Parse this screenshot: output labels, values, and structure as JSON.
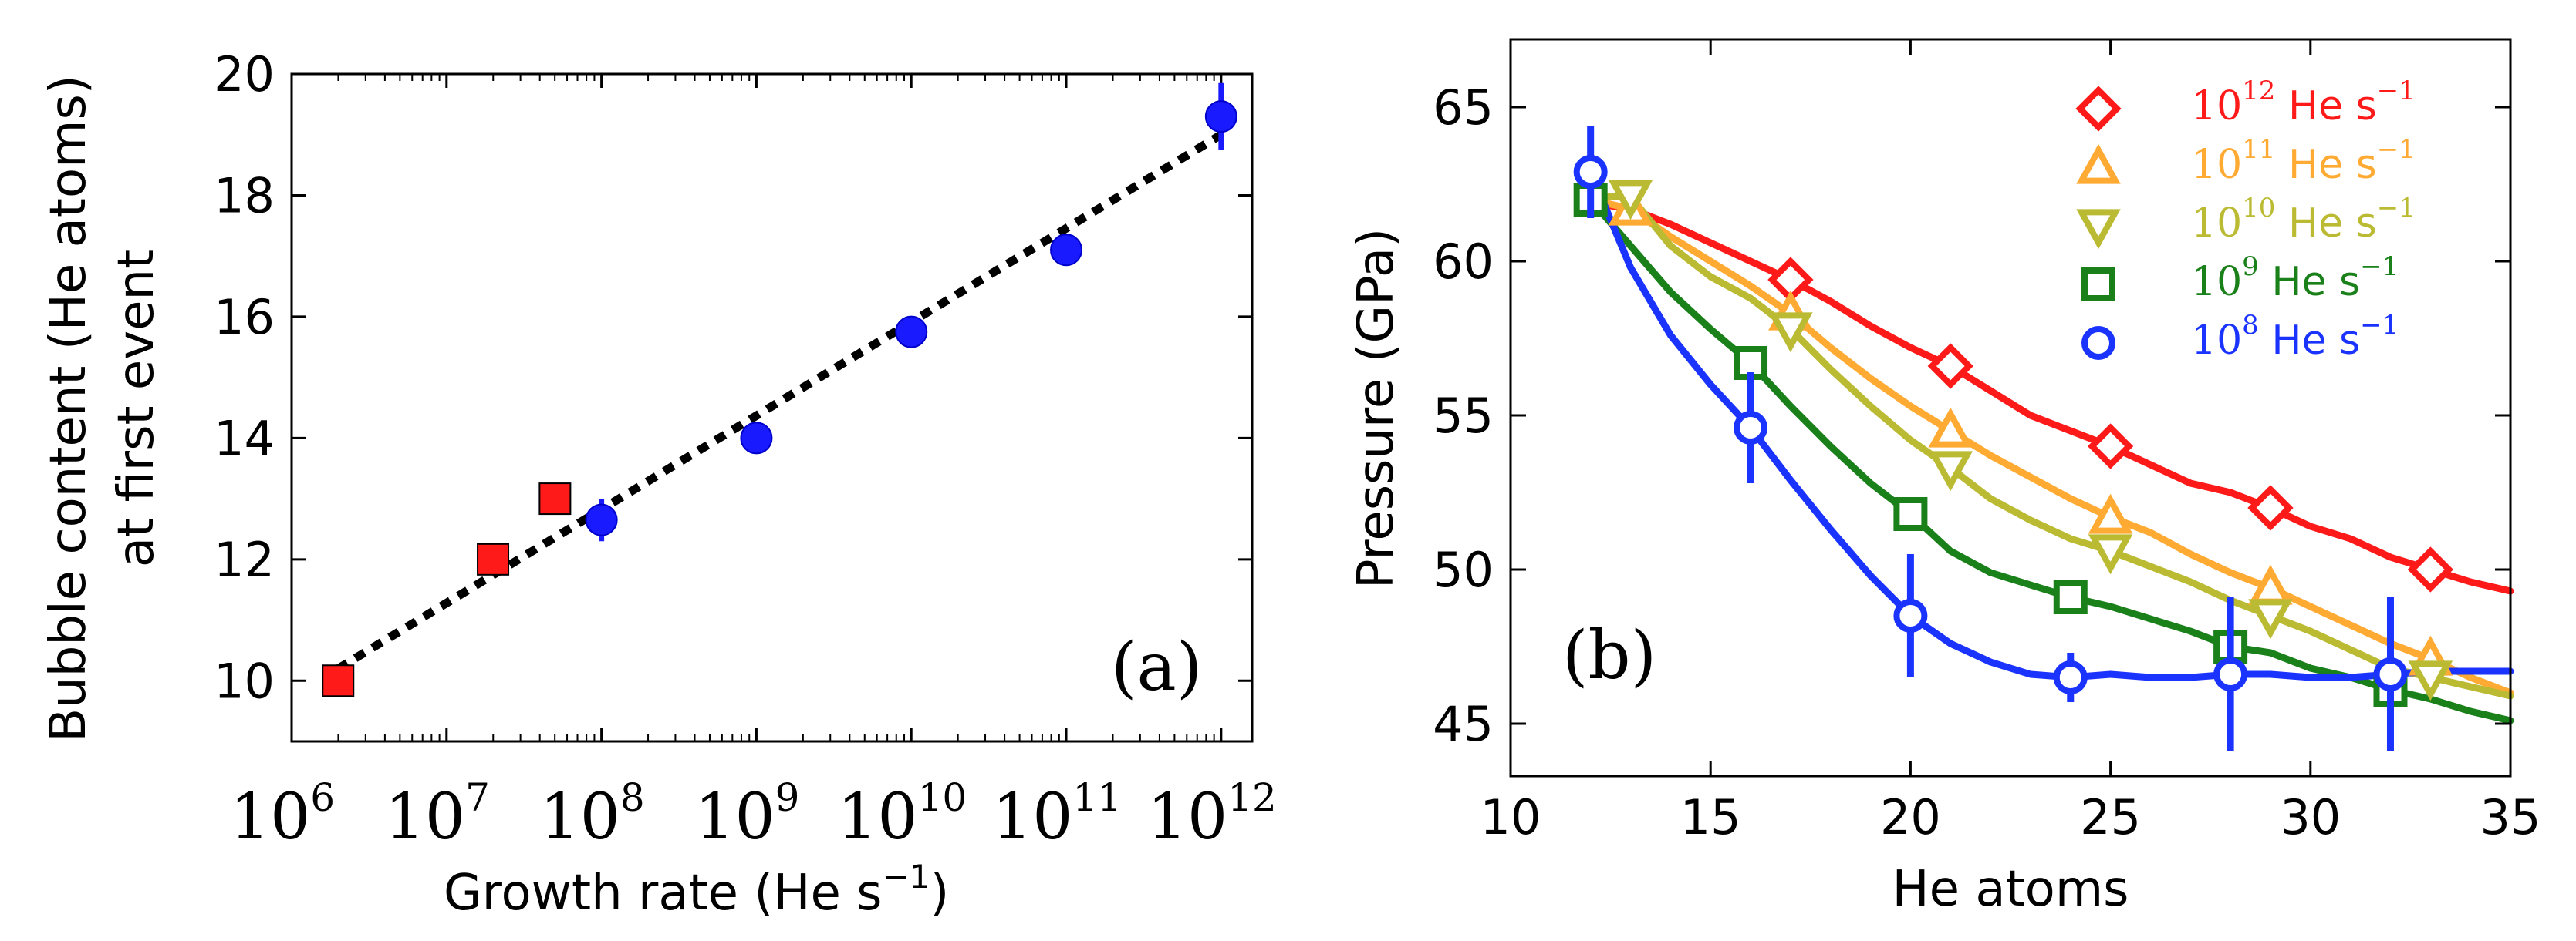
{
  "chart_data": [
    {
      "type": "scatter",
      "panel_label": "(a)",
      "xlabel_main": "Growth rate (",
      "xlabel_unit": "He s",
      "xlabel_exp": "−1",
      "xlabel_close": ")",
      "ylabel_line1": "Bubble content (He atoms)",
      "ylabel_line2": "at first event",
      "xscale": "log",
      "xlim_log10": [
        6,
        12.2
      ],
      "ylim": [
        9,
        20
      ],
      "x_ticks": [
        {
          "base": "10",
          "exp": "6",
          "log": 6
        },
        {
          "base": "10",
          "exp": "7",
          "log": 7
        },
        {
          "base": "10",
          "exp": "8",
          "log": 8
        },
        {
          "base": "10",
          "exp": "9",
          "log": 9
        },
        {
          "base": "10",
          "exp": "10",
          "log": 10
        },
        {
          "base": "10",
          "exp": "11",
          "log": 11
        },
        {
          "base": "10",
          "exp": "12",
          "log": 12
        }
      ],
      "y_ticks": [
        "10",
        "12",
        "14",
        "16",
        "18",
        "20"
      ],
      "series": [
        {
          "name": "squares",
          "marker": "square",
          "color": "#ff1a1a",
          "points": [
            {
              "x_log10": 6.3,
              "y": 10.0
            },
            {
              "x_log10": 7.3,
              "y": 12.0
            },
            {
              "x_log10": 7.7,
              "y": 13.0
            }
          ]
        },
        {
          "name": "circles",
          "marker": "circle",
          "color": "#1a1aff",
          "points": [
            {
              "x_log10": 8,
              "y": 12.65,
              "err": 0.35
            },
            {
              "x_log10": 9,
              "y": 14.0,
              "err": 0.25
            },
            {
              "x_log10": 10,
              "y": 15.75,
              "err": 0.15
            },
            {
              "x_log10": 11,
              "y": 17.1,
              "err": 0.2
            },
            {
              "x_log10": 12,
              "y": 19.3,
              "err": 0.55
            }
          ]
        }
      ],
      "fit_line": {
        "style": "dotted",
        "color": "#000000",
        "from": {
          "x_log10": 6.3,
          "y": 10.2
        },
        "to": {
          "x_log10": 12,
          "y": 19.0
        }
      }
    },
    {
      "type": "line",
      "panel_label": "(b)",
      "xlabel": "He atoms",
      "ylabel": "Pressure (GPa)",
      "xlim": [
        10,
        35
      ],
      "ylim": [
        43.3,
        67.2
      ],
      "x_ticks": [
        "10",
        "15",
        "20",
        "25",
        "30",
        "35"
      ],
      "y_ticks": [
        "45",
        "50",
        "55",
        "60",
        "65"
      ],
      "legend_position": "top-right",
      "series": [
        {
          "name_base": "10",
          "name_exp": "12",
          "name_unit": " He s",
          "name_unit_exp": "−1",
          "color": "#ff1a1a",
          "marker": "diamond",
          "line": [
            [
              12,
              61.9
            ],
            [
              13,
              61.7
            ],
            [
              14,
              61.2
            ],
            [
              15,
              60.6
            ],
            [
              16,
              60.0
            ],
            [
              17,
              59.4
            ],
            [
              18,
              58.7
            ],
            [
              19,
              57.9
            ],
            [
              20,
              57.2
            ],
            [
              21,
              56.6
            ],
            [
              22,
              55.8
            ],
            [
              23,
              55.0
            ],
            [
              24,
              54.5
            ],
            [
              25,
              54.0
            ],
            [
              26,
              53.4
            ],
            [
              27,
              52.8
            ],
            [
              28,
              52.5
            ],
            [
              29,
              52.0
            ],
            [
              30,
              51.4
            ],
            [
              31,
              51.0
            ],
            [
              32,
              50.4
            ],
            [
              33,
              50.0
            ],
            [
              34,
              49.6
            ],
            [
              35,
              49.3
            ]
          ],
          "markers": [
            [
              17,
              59.4
            ],
            [
              21,
              56.6
            ],
            [
              25,
              54.0
            ],
            [
              29,
              52.0
            ],
            [
              33,
              50.0
            ]
          ]
        },
        {
          "name_base": "10",
          "name_exp": "11",
          "name_unit": " He s",
          "name_unit_exp": "−1",
          "color": "#ffaa33",
          "marker": "triangle-up",
          "line": [
            [
              12,
              62.0
            ],
            [
              13,
              61.7
            ],
            [
              14,
              60.8
            ],
            [
              15,
              60.0
            ],
            [
              16,
              59.2
            ],
            [
              17,
              58.3
            ],
            [
              18,
              57.2
            ],
            [
              19,
              56.2
            ],
            [
              20,
              55.3
            ],
            [
              21,
              54.5
            ],
            [
              22,
              53.7
            ],
            [
              23,
              53.0
            ],
            [
              24,
              52.3
            ],
            [
              25,
              51.7
            ],
            [
              26,
              51.2
            ],
            [
              27,
              50.5
            ],
            [
              28,
              49.9
            ],
            [
              29,
              49.4
            ],
            [
              30,
              48.8
            ],
            [
              31,
              48.2
            ],
            [
              32,
              47.6
            ],
            [
              33,
              47.1
            ],
            [
              34,
              46.5
            ],
            [
              35,
              46.0
            ]
          ],
          "markers": [
            [
              13,
              61.7
            ],
            [
              17,
              58.3
            ],
            [
              21,
              54.5
            ],
            [
              25,
              51.7
            ],
            [
              29,
              49.4
            ],
            [
              33,
              47.1
            ]
          ]
        },
        {
          "name_base": "10",
          "name_exp": "10",
          "name_unit": " He s",
          "name_unit_exp": "−1",
          "color": "#bbbb33",
          "marker": "triangle-down",
          "line": [
            [
              12,
              62.1
            ],
            [
              13,
              62.1
            ],
            [
              14,
              60.5
            ],
            [
              15,
              59.5
            ],
            [
              16,
              58.8
            ],
            [
              17,
              57.8
            ],
            [
              18,
              56.5
            ],
            [
              19,
              55.3
            ],
            [
              20,
              54.2
            ],
            [
              21,
              53.3
            ],
            [
              22,
              52.3
            ],
            [
              23,
              51.6
            ],
            [
              24,
              51.0
            ],
            [
              25,
              50.6
            ],
            [
              26,
              50.1
            ],
            [
              27,
              49.6
            ],
            [
              28,
              49.0
            ],
            [
              29,
              48.5
            ],
            [
              30,
              48.0
            ],
            [
              31,
              47.4
            ],
            [
              32,
              46.8
            ],
            [
              33,
              46.5
            ],
            [
              34,
              46.2
            ],
            [
              35,
              45.9
            ]
          ],
          "markers": [
            [
              13,
              62.1
            ],
            [
              17,
              57.8
            ],
            [
              21,
              53.3
            ],
            [
              25,
              50.6
            ],
            [
              29,
              48.5
            ],
            [
              33,
              46.5
            ]
          ]
        },
        {
          "name_base": "10",
          "name_exp": "9",
          "name_unit": " He s",
          "name_unit_exp": "−1",
          "color": "#1a801a",
          "marker": "square",
          "line": [
            [
              12,
              62.0
            ],
            [
              13,
              60.5
            ],
            [
              14,
              59.0
            ],
            [
              15,
              57.8
            ],
            [
              16,
              56.7
            ],
            [
              17,
              55.3
            ],
            [
              18,
              54.0
            ],
            [
              19,
              52.8
            ],
            [
              20,
              51.8
            ],
            [
              21,
              50.6
            ],
            [
              22,
              49.9
            ],
            [
              23,
              49.5
            ],
            [
              24,
              49.1
            ],
            [
              25,
              48.8
            ],
            [
              26,
              48.4
            ],
            [
              27,
              48.0
            ],
            [
              28,
              47.5
            ],
            [
              29,
              47.3
            ],
            [
              30,
              46.8
            ],
            [
              31,
              46.5
            ],
            [
              32,
              46.1
            ],
            [
              33,
              45.8
            ],
            [
              34,
              45.4
            ],
            [
              35,
              45.1
            ]
          ],
          "markers": [
            [
              12,
              62.0
            ],
            [
              16,
              56.7
            ],
            [
              20,
              51.8
            ],
            [
              24,
              49.1
            ],
            [
              28,
              47.5
            ],
            [
              32,
              46.1
            ]
          ]
        },
        {
          "name_base": "10",
          "name_exp": "8",
          "name_unit": " He s",
          "name_unit_exp": "−1",
          "color": "#1a33ff",
          "marker": "circle",
          "line": [
            [
              12,
              62.9
            ],
            [
              13,
              59.8
            ],
            [
              14,
              57.6
            ],
            [
              15,
              56.0
            ],
            [
              16,
              54.6
            ],
            [
              17,
              52.9
            ],
            [
              18,
              51.3
            ],
            [
              19,
              49.8
            ],
            [
              20,
              48.5
            ],
            [
              21,
              47.6
            ],
            [
              22,
              47.0
            ],
            [
              23,
              46.6
            ],
            [
              24,
              46.5
            ],
            [
              25,
              46.6
            ],
            [
              26,
              46.5
            ],
            [
              27,
              46.5
            ],
            [
              28,
              46.6
            ],
            [
              29,
              46.6
            ],
            [
              30,
              46.5
            ],
            [
              31,
              46.5
            ],
            [
              32,
              46.6
            ],
            [
              33,
              46.7
            ],
            [
              34,
              46.7
            ],
            [
              35,
              46.7
            ]
          ],
          "markers": [
            [
              12,
              62.9
            ],
            [
              16,
              54.6
            ],
            [
              20,
              48.5
            ],
            [
              24,
              46.5
            ],
            [
              28,
              46.6
            ],
            [
              32,
              46.6
            ]
          ],
          "errors": [
            [
              12,
              62.9,
              1.5
            ],
            [
              16,
              54.6,
              1.8
            ],
            [
              20,
              48.5,
              2.0
            ],
            [
              24,
              46.5,
              0.8
            ],
            [
              28,
              46.6,
              2.5
            ],
            [
              32,
              46.6,
              2.5
            ]
          ]
        }
      ]
    }
  ]
}
